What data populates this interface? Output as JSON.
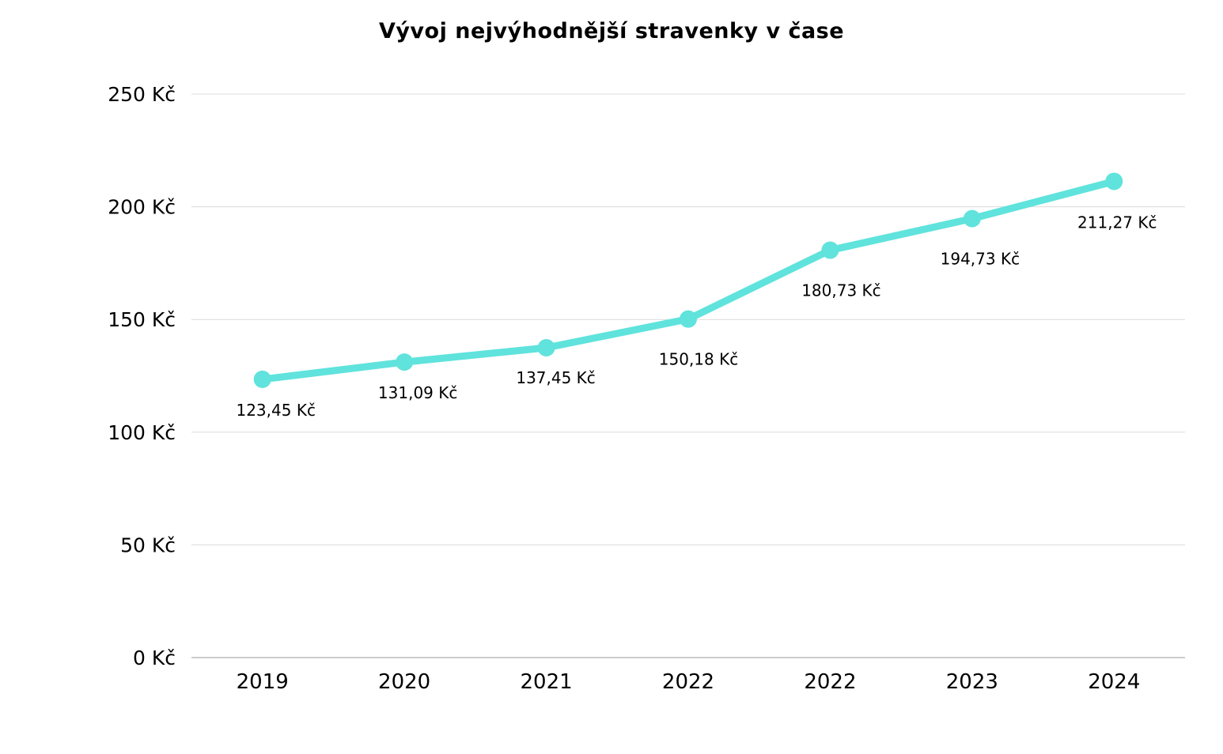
{
  "page": {
    "background_color": "#ffffff"
  },
  "chart_data": {
    "type": "line",
    "title": "Vývoj nejvýhodnější stravenky v čase",
    "categories": [
      "2019",
      "2020",
      "2021",
      "2022",
      "2022",
      "2023",
      "2024"
    ],
    "values": [
      123.45,
      131.09,
      137.45,
      150.18,
      180.73,
      194.73,
      211.27
    ],
    "point_labels": [
      "123,45 Kč",
      "131,09 Kč",
      "137,45 Kč",
      "150,18 Kč",
      "180,73 Kč",
      "194,73 Kč",
      "211,27 Kč"
    ],
    "xlabel": "",
    "ylabel": "",
    "ylim": [
      0,
      250
    ],
    "y_ticks": [
      0,
      50,
      100,
      150,
      200,
      250
    ],
    "y_tick_labels": [
      "0 Kč",
      "50 Kč",
      "100 Kč",
      "150 Kč",
      "200 Kč",
      "250 Kč"
    ],
    "grid": true,
    "legend_position": "none",
    "line_color": "#5fe3dc",
    "grid_color": "#dcdcdc",
    "axis_color": "#999999",
    "text_color": "#000000"
  }
}
